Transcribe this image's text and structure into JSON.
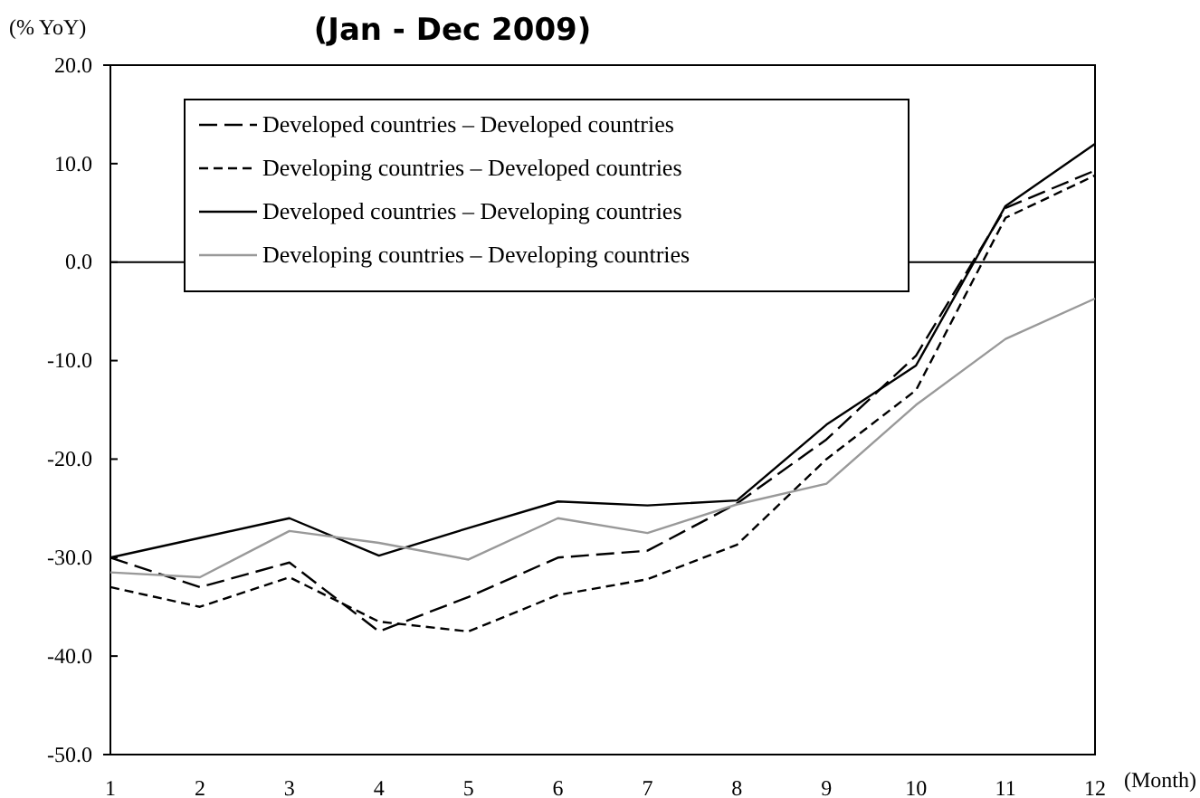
{
  "chart_data": {
    "type": "line",
    "title": "(Jan - Dec 2009)",
    "ylabel": "(% YoY)",
    "xlabel": "(Month)",
    "x": [
      1,
      2,
      3,
      4,
      5,
      6,
      7,
      8,
      9,
      10,
      11,
      12
    ],
    "xlim": [
      1,
      12
    ],
    "xticks": [
      1,
      2,
      3,
      4,
      5,
      6,
      7,
      8,
      9,
      10,
      11,
      12
    ],
    "ylim": [
      -50,
      20
    ],
    "yticks": [
      {
        "value": -50,
        "label": "-50.0"
      },
      {
        "value": -40,
        "label": "-40.0"
      },
      {
        "value": -30,
        "label": "-30.0"
      },
      {
        "value": -20,
        "label": "-20.0"
      },
      {
        "value": -10,
        "label": "-10.0"
      },
      {
        "value": 0,
        "label": "0.0"
      },
      {
        "value": 10,
        "label": "10.0"
      },
      {
        "value": 20,
        "label": "20.0"
      }
    ],
    "series": [
      {
        "name": "Developed countries – Developed countries",
        "color": "#000000",
        "line_style": "dashed",
        "values": [
          -30,
          -33,
          -30.5,
          -37.5,
          -34,
          -30,
          -29.3,
          -24.5,
          -18,
          -9.5,
          5.5,
          9.3
        ]
      },
      {
        "name": "Developing countries – Developed countries",
        "color": "#000000",
        "line_style": "dotted",
        "values": [
          -33,
          -35,
          -32,
          -36.5,
          -37.5,
          -33.8,
          -32.2,
          -28.7,
          -20,
          -13,
          4.5,
          8.8
        ]
      },
      {
        "name": "Developed countries – Developing countries",
        "color": "#000000",
        "line_style": "solid",
        "values": [
          -30,
          -28,
          -26,
          -29.8,
          -27,
          -24.3,
          -24.7,
          -24.2,
          -16.5,
          -10.5,
          5.7,
          12
        ]
      },
      {
        "name": "Developing countries – Developing countries",
        "color": "#999999",
        "line_style": "solid",
        "values": [
          -31.5,
          -32,
          -27.3,
          -28.5,
          -30.2,
          -26,
          -27.5,
          -24.6,
          -22.5,
          -14.5,
          -7.8,
          -3.7
        ]
      }
    ],
    "ref_lines": [
      {
        "axis": "y",
        "value": 0,
        "color": "#000000"
      }
    ],
    "legend": "top left",
    "grid": false,
    "marker": "none"
  }
}
